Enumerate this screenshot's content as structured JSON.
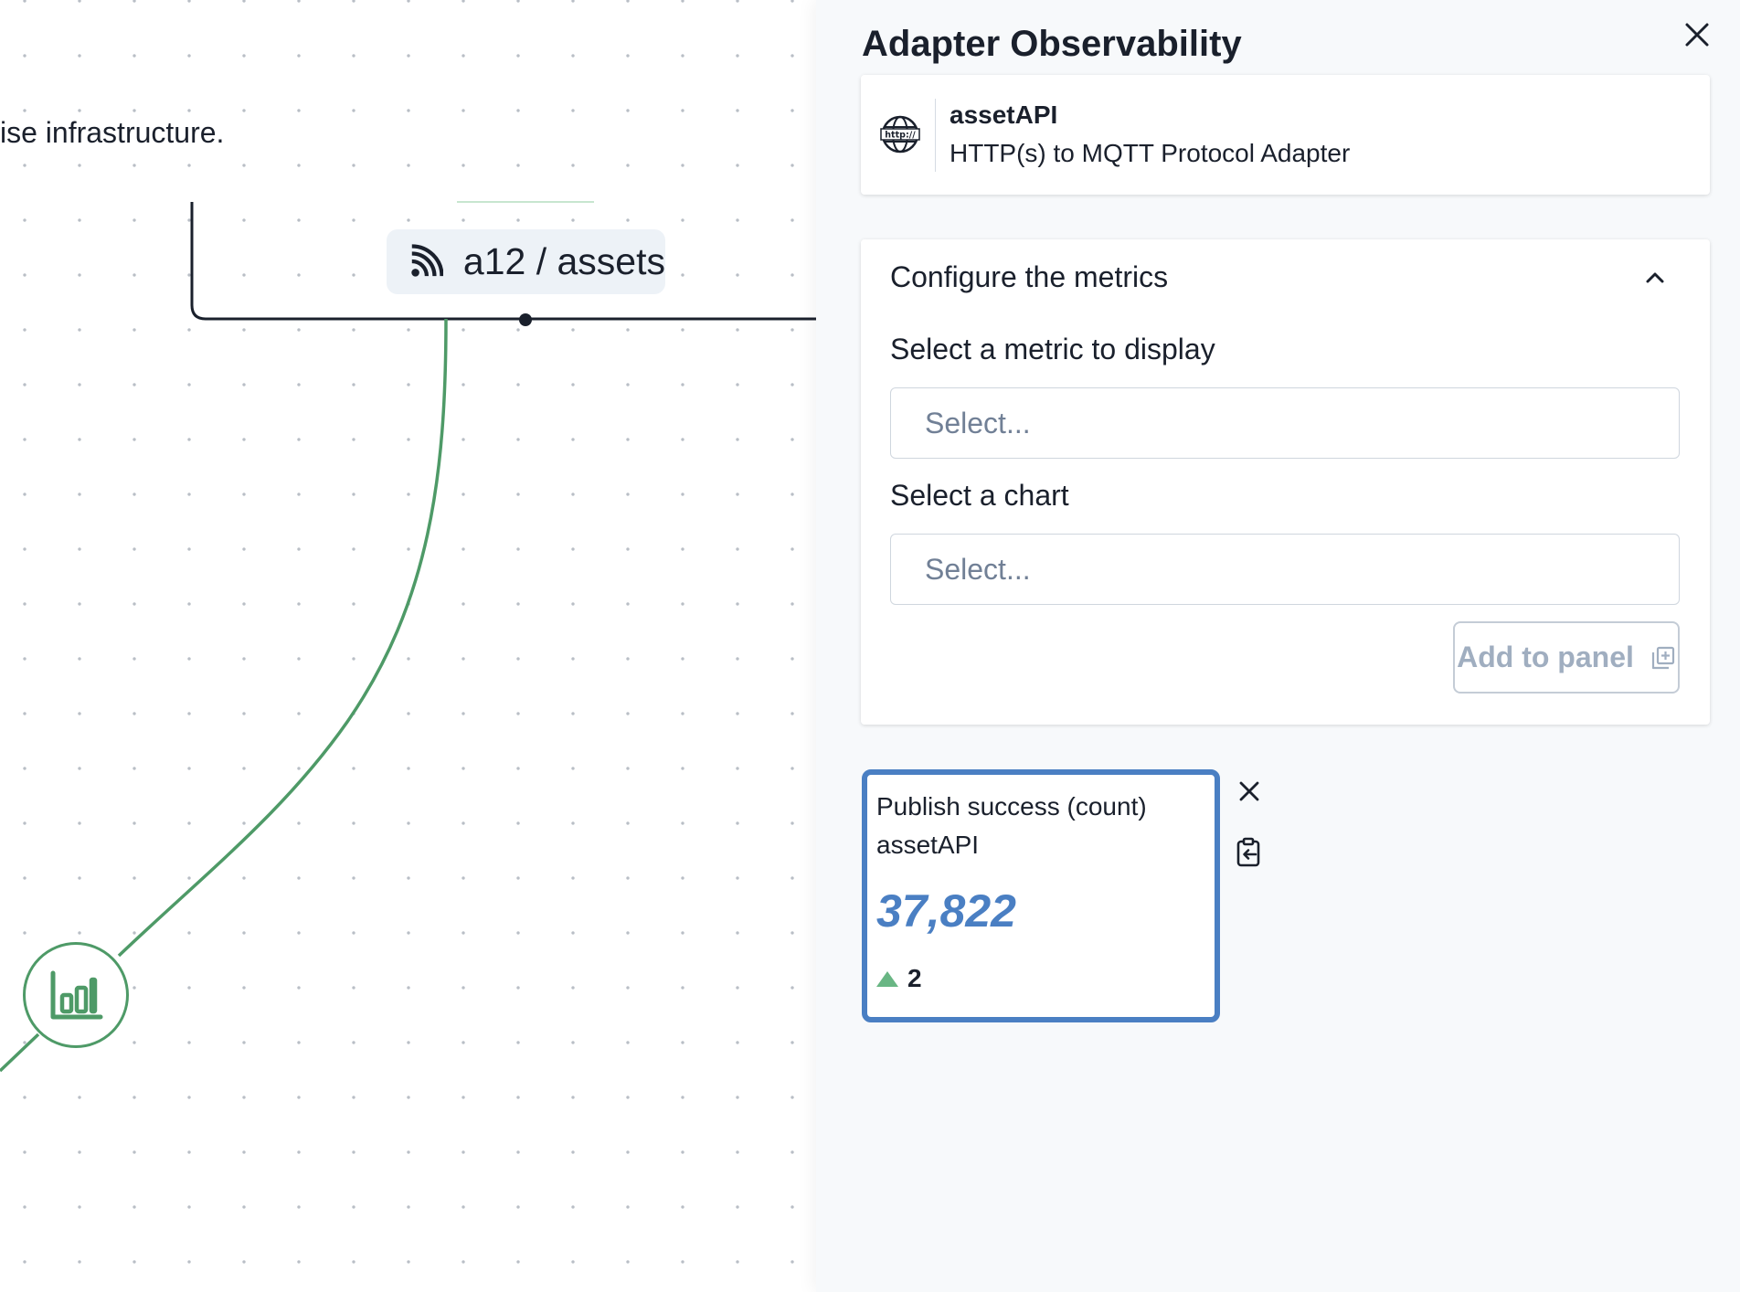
{
  "canvas": {
    "description_fragment": "ise infrastructure.",
    "topic_node": {
      "icon": "rss-feed-icon",
      "label": "a12 / assets"
    },
    "metric_node": {
      "icon": "bar-chart-icon"
    },
    "colors": {
      "edge_green": "#4e9a67",
      "edge_dark": "#1a202c"
    }
  },
  "drawer": {
    "title": "Adapter Observability",
    "close_icon": "close-icon",
    "adapter": {
      "icon": "http-globe-icon",
      "name": "assetAPI",
      "type": "HTTP(s) to MQTT Protocol Adapter"
    },
    "config": {
      "section_title": "Configure the metrics",
      "expanded": true,
      "metric_label": "Select a metric to display",
      "metric_placeholder": "Select...",
      "chart_label": "Select a chart",
      "chart_placeholder": "Select...",
      "add_button_label": "Add to panel",
      "add_button_icon": "add-to-panel-icon",
      "add_button_enabled": false
    },
    "metric_panel": {
      "title": "Publish success (count)",
      "source": "assetAPI",
      "value": "37,822",
      "delta": "2",
      "delta_direction": "up",
      "remove_icon": "close-icon",
      "copy_icon": "clipboard-copy-icon",
      "accent_color": "#4a7fc3",
      "delta_color": "#69b684"
    }
  }
}
